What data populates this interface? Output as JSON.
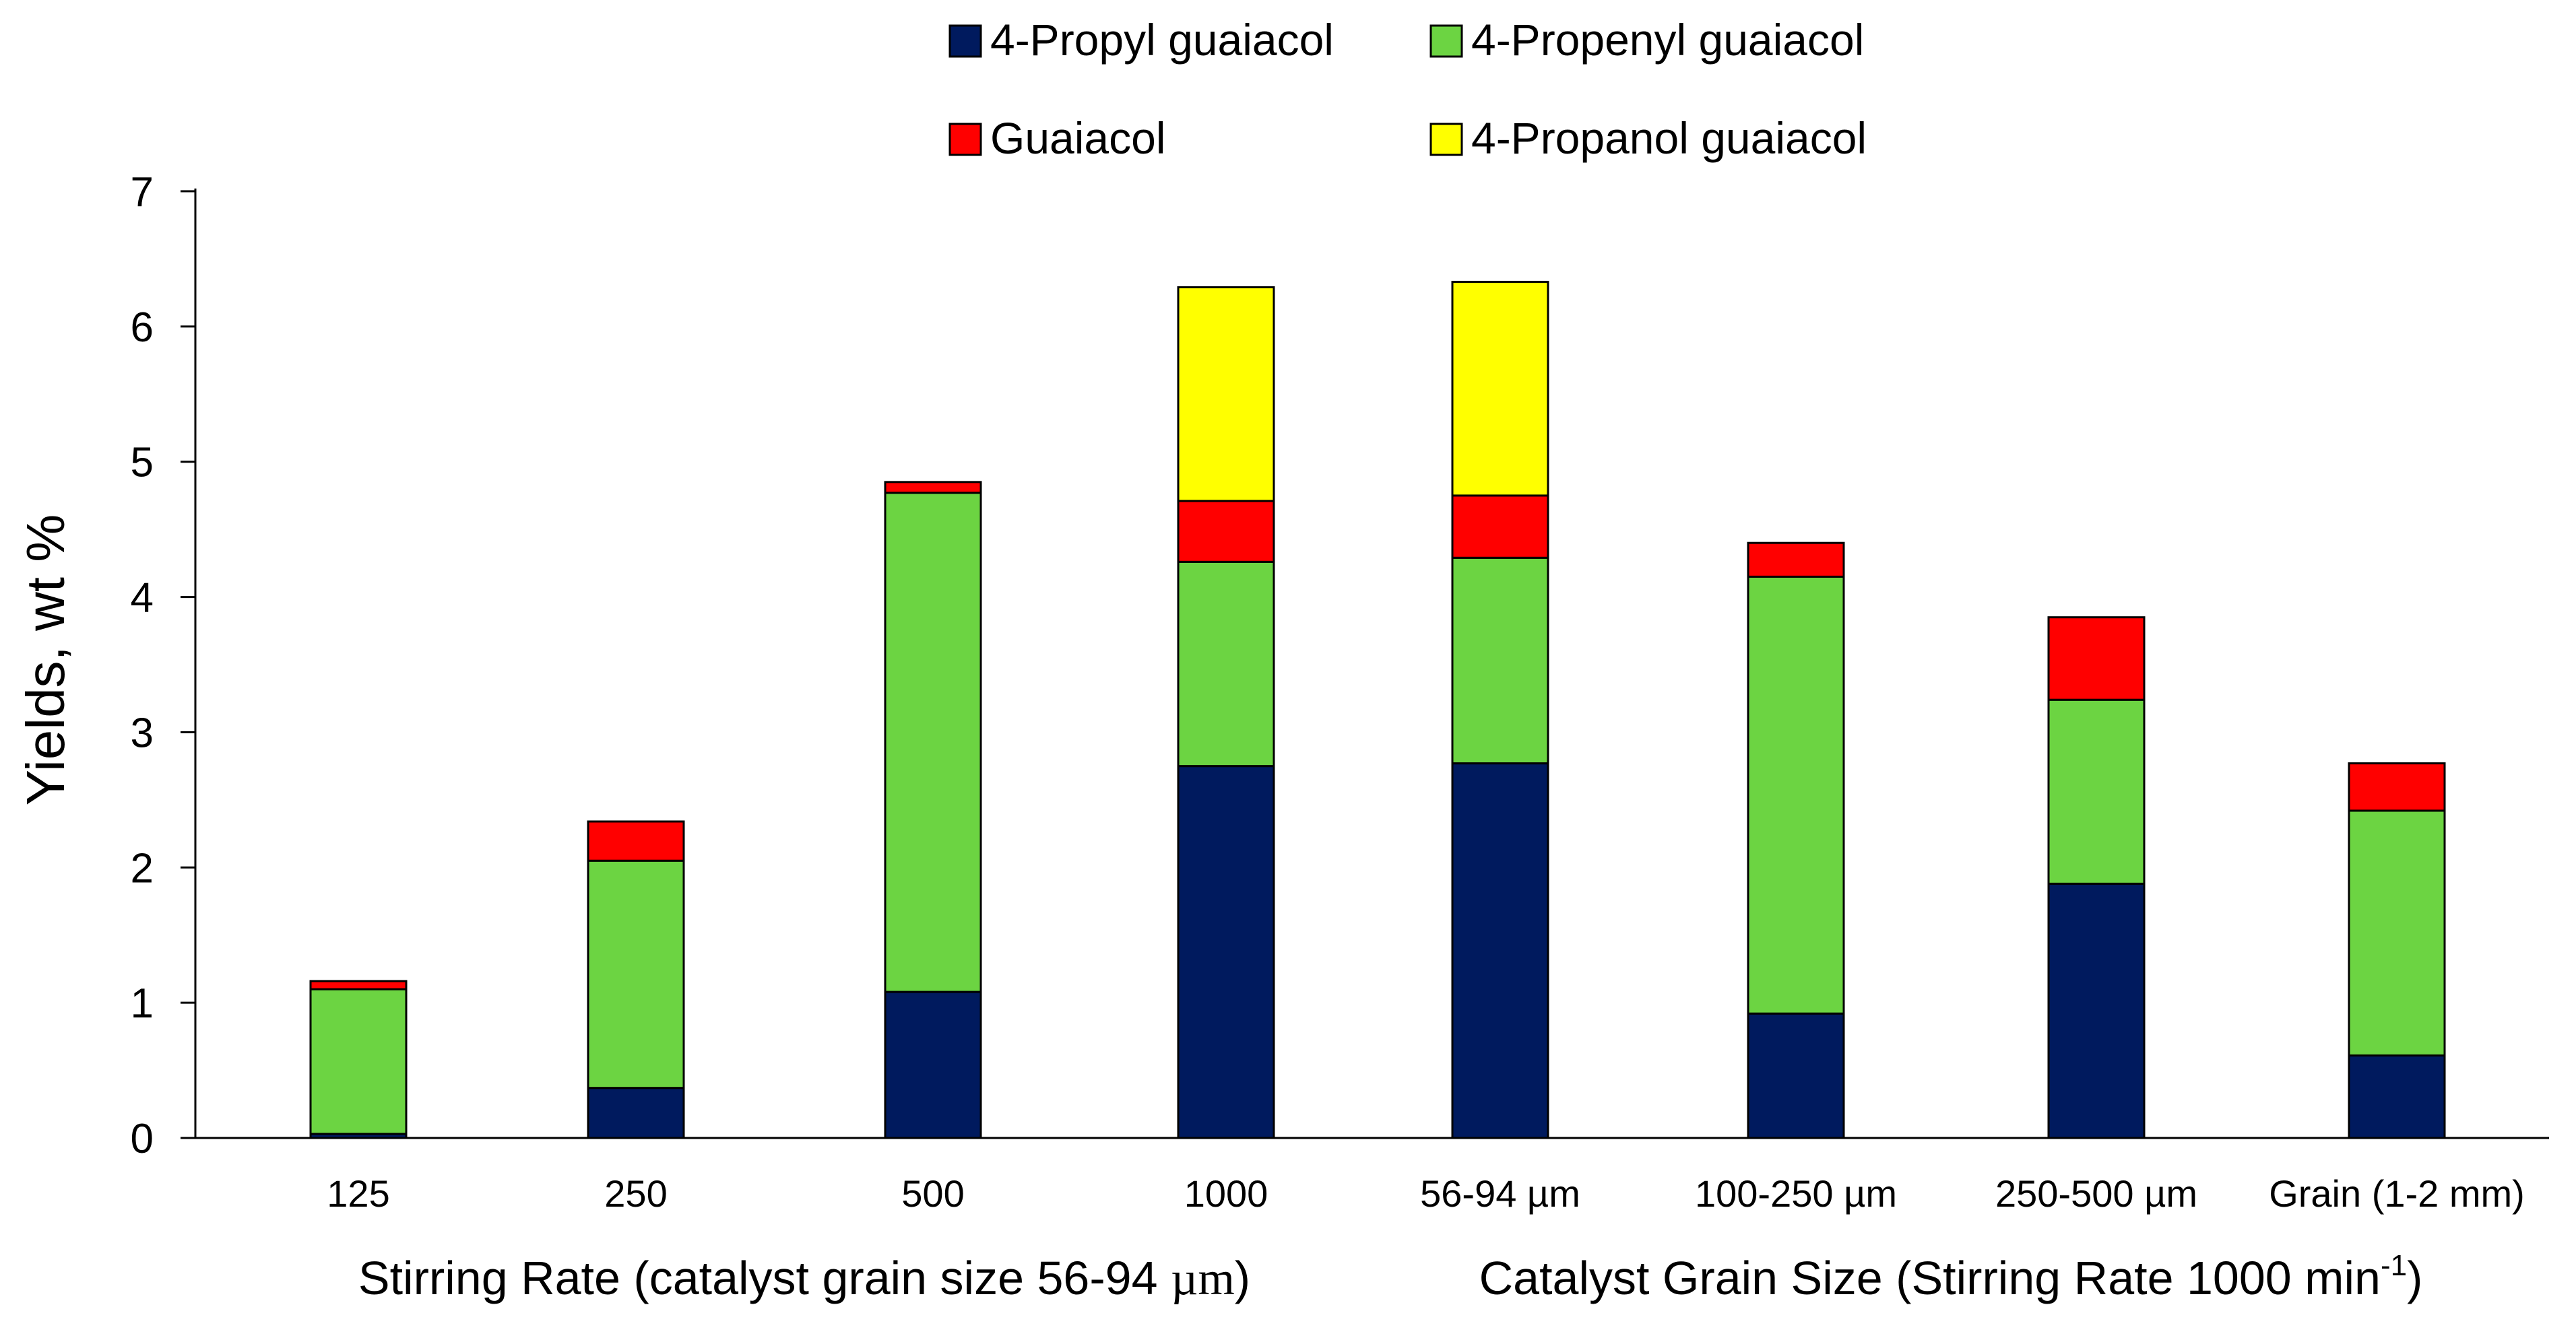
{
  "chart_data": {
    "type": "bar",
    "stacked": true,
    "categories": [
      "125",
      "250",
      "500",
      "1000",
      "56-94 µm",
      "100-250 µm",
      "250-500 µm",
      "Grain (1-2 mm)"
    ],
    "series": [
      {
        "name": "4-Propyl guaiacol",
        "color": "#001A5E",
        "values": [
          0.03,
          0.37,
          1.08,
          2.75,
          2.77,
          0.92,
          1.88,
          0.61
        ]
      },
      {
        "name": "4-Propenyl guaiacol",
        "color": "#6CD442",
        "values": [
          1.07,
          1.68,
          3.69,
          1.51,
          1.52,
          3.23,
          1.36,
          1.81
        ]
      },
      {
        "name": "Guaiacol",
        "color": "#FF0000",
        "values": [
          0.06,
          0.29,
          0.08,
          0.45,
          0.46,
          0.25,
          0.61,
          0.35
        ]
      },
      {
        "name": "4-Propanol guaiacol",
        "color": "#FFFF00",
        "values": [
          0,
          0,
          0,
          1.58,
          1.58,
          0,
          0,
          0
        ]
      }
    ],
    "ylabel": "Yields, wt %",
    "xlabel": "",
    "ylim": [
      0,
      7
    ],
    "yticks": [
      0,
      1,
      2,
      3,
      4,
      5,
      6,
      7
    ],
    "grid": false,
    "legend_position": "top",
    "group_labels": [
      {
        "text": "Stirring Rate (catalyst grain size 56-94 ",
        "unit": "µm",
        "suffix": ")",
        "categories": [
          "125",
          "250",
          "500",
          "1000"
        ]
      },
      {
        "text": "Catalyst Grain Size (Stirring Rate 1000 min",
        "superscript": "-1",
        "suffix": ")",
        "categories": [
          "56-94 µm",
          "100-250 µm",
          "250-500 µm",
          "Grain (1-2 mm)"
        ]
      }
    ]
  }
}
